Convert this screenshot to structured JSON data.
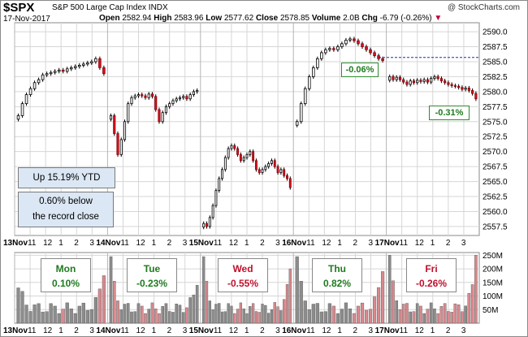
{
  "header": {
    "symbol": "$SPX",
    "name": "S&P 500 Large Cap Index",
    "exchange": "INDX",
    "date": "17-Nov-2017",
    "open_label": "Open",
    "open": "2582.94",
    "high_label": "High",
    "high": "2583.96",
    "low_label": "Low",
    "low": "2577.62",
    "close_label": "Close",
    "close": "2578.85",
    "volume_label": "Volume",
    "volume": "2.0B",
    "chg_label": "Chg",
    "chg": "-6.79 (-0.26%)",
    "brand": "@ StockCharts.com"
  },
  "annotations": {
    "ytd": "Up 15.19% YTD",
    "record_line1": "0.60% below",
    "record_line2": "the record close",
    "callout_1": "-0.06%",
    "callout_2": "-0.31%"
  },
  "days": [
    {
      "day": "Mon",
      "pct": "0.10%",
      "color": "#1e7a1e"
    },
    {
      "day": "Tue",
      "pct": "-0.23%",
      "color": "#1e7a1e"
    },
    {
      "day": "Wed",
      "pct": "-0.55%",
      "color": "#c0102a"
    },
    {
      "day": "Thu",
      "pct": "0.82%",
      "color": "#1e7a1e"
    },
    {
      "day": "Fri",
      "pct": "-0.26%",
      "color": "#c0102a"
    }
  ],
  "colors": {
    "up": "#ffffff",
    "down": "#d9131e",
    "vol_up": "#8c8c8c",
    "vol_down": "#d98a8f",
    "grid": "#d6d6d6",
    "reference_line": "#1a2db8"
  },
  "chart_data": [
    {
      "type": "candlestick",
      "title": "",
      "ylim": [
        2556,
        2591.5
      ],
      "y_ticks": [
        "2590.0",
        "2587.5",
        "2585.0",
        "2582.5",
        "2580.0",
        "2577.5",
        "2575.0",
        "2572.5",
        "2570.0",
        "2567.5",
        "2565.0",
        "2562.5",
        "2560.0",
        "2557.5"
      ],
      "x_tick_labels": [
        "13Nov",
        "11",
        "12",
        "1",
        "2",
        "3",
        "14Nov",
        "11",
        "12",
        "1",
        "2",
        "3",
        "15Nov",
        "11",
        "12",
        "1",
        "2",
        "3",
        "16Nov",
        "11",
        "12",
        "1",
        "2",
        "3",
        "17Nov",
        "11",
        "12",
        "1",
        "2",
        "3"
      ],
      "reference_level": 2585.7,
      "session_closes": [
        [
          2576.0,
          2578.0,
          2579.5,
          2580.5,
          2581.5,
          2582.0,
          2582.8,
          2583.0,
          2583.2,
          2583.4,
          2583.6,
          2583.4,
          2583.8,
          2584.0,
          2584.2,
          2584.4,
          2584.6,
          2584.8,
          2585.0,
          2585.5,
          2584.0,
          2583.0
        ],
        [
          2576.0,
          2573.0,
          2569.5,
          2572.0,
          2575.0,
          2578.0,
          2579.0,
          2579.3,
          2579.5,
          2579.3,
          2579.0,
          2579.6,
          2579.2,
          2577.0,
          2575.0,
          2576.5,
          2577.5,
          2578.0,
          2578.5,
          2578.8,
          2579.0,
          2579.2,
          2578.8,
          2579.5,
          2580.0,
          2580.2
        ],
        [
          2558.0,
          2557.5,
          2559.0,
          2561.0,
          2563.5,
          2565.5,
          2567.0,
          2569.0,
          2570.5,
          2571.0,
          2570.5,
          2569.5,
          2568.5,
          2569.0,
          2569.5,
          2570.0,
          2568.5,
          2567.0,
          2566.5,
          2567.0,
          2567.5,
          2568.0,
          2568.5,
          2567.5,
          2566.5,
          2567.0,
          2566.0,
          2565.5,
          2564.0
        ],
        [
          2575.0,
          2578.0,
          2580.5,
          2582.5,
          2584.0,
          2585.5,
          2586.5,
          2587.0,
          2587.2,
          2587.0,
          2587.5,
          2588.0,
          2588.6,
          2588.8,
          2588.5,
          2588.0,
          2587.5,
          2587.0,
          2586.5,
          2586.0,
          2585.5,
          2585.2
        ],
        [
          2582.5,
          2582.0,
          2582.4,
          2582.0,
          2581.6,
          2581.2,
          2581.8,
          2581.5,
          2581.9,
          2581.7,
          2582.0,
          2581.6,
          2582.2,
          2582.5,
          2582.2,
          2581.8,
          2581.5,
          2581.2,
          2581.0,
          2580.9,
          2580.7,
          2580.4,
          2580.6,
          2580.2,
          2579.7,
          2578.8
        ]
      ]
    },
    {
      "type": "bar",
      "title": "",
      "ylabel": "",
      "ylim": [
        0,
        260
      ],
      "y_ticks": [
        "250M",
        "200M",
        "150M",
        "100M",
        "50M"
      ],
      "x_tick_labels": [
        "13Nov",
        "11",
        "12",
        "1",
        "2",
        "3",
        "14Nov",
        "11",
        "12",
        "1",
        "2",
        "3",
        "15Nov",
        "11",
        "12",
        "1",
        "2",
        "3",
        "16Nov",
        "11",
        "12",
        "1",
        "2",
        "3",
        "17Nov",
        "11",
        "12",
        "1",
        "2",
        "3"
      ],
      "peak_values": [
        130,
        175,
        245,
        140,
        245,
        200,
        245,
        190,
        250
      ]
    }
  ]
}
